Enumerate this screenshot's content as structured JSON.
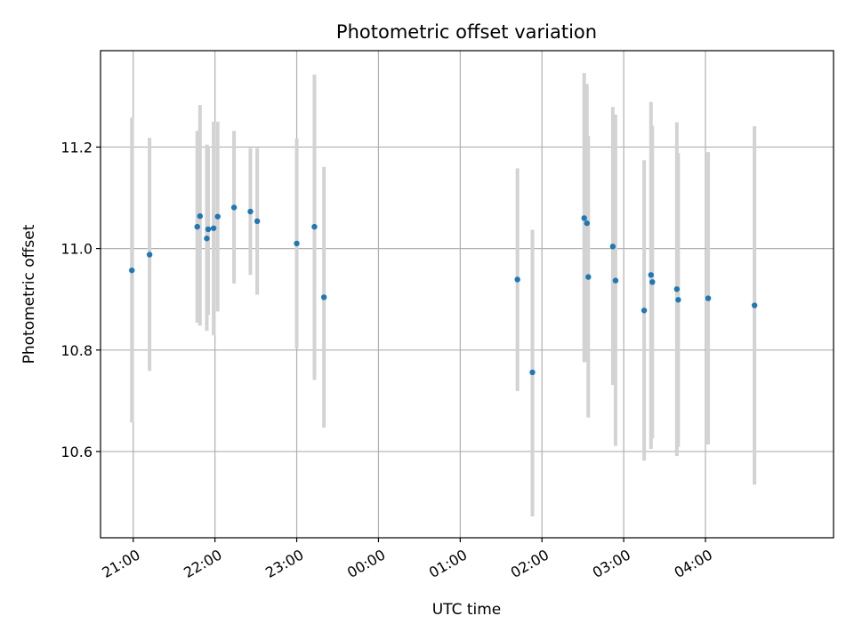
{
  "chart_data": {
    "type": "scatter",
    "title": "Photometric offset variation",
    "xlabel": "UTC time",
    "ylabel": "Photometric offset",
    "grid": true,
    "x_ticks": [
      "21:00",
      "22:00",
      "23:00",
      "00:00",
      "01:00",
      "02:00",
      "03:00",
      "04:00"
    ],
    "y_ticks": [
      "10.6",
      "10.8",
      "11.0",
      "11.2"
    ],
    "ylim": [
      10.43,
      11.39
    ],
    "xlim": [
      "20:36",
      "05:34"
    ],
    "colors": {
      "point": "#1f77b4",
      "errorbar": "#d3d3d3",
      "grid": "#b0b0b0"
    },
    "series": [
      {
        "points": [
          {
            "x": "20:59",
            "y": 10.957,
            "low": 10.657,
            "high": 11.258
          },
          {
            "x": "21:12",
            "y": 10.988,
            "low": 10.759,
            "high": 11.218
          },
          {
            "x": "21:47",
            "y": 11.043,
            "low": 10.854,
            "high": 11.232
          },
          {
            "x": "21:49",
            "y": 11.064,
            "low": 10.848,
            "high": 11.283
          },
          {
            "x": "21:54",
            "y": 11.02,
            "low": 10.838,
            "high": 11.205
          },
          {
            "x": "21:55",
            "y": 11.038,
            "low": 10.869,
            "high": 11.202
          },
          {
            "x": "21:59",
            "y": 11.04,
            "low": 10.829,
            "high": 11.25
          },
          {
            "x": "22:02",
            "y": 11.063,
            "low": 10.876,
            "high": 11.25
          },
          {
            "x": "22:14",
            "y": 11.081,
            "low": 10.931,
            "high": 11.232
          },
          {
            "x": "22:26",
            "y": 11.073,
            "low": 10.948,
            "high": 11.198
          },
          {
            "x": "22:31",
            "y": 11.054,
            "low": 10.909,
            "high": 11.198
          },
          {
            "x": "23:00",
            "y": 11.01,
            "low": 10.803,
            "high": 11.217
          },
          {
            "x": "23:13",
            "y": 11.043,
            "low": 10.741,
            "high": 11.343
          },
          {
            "x": "23:20",
            "y": 10.904,
            "low": 10.647,
            "high": 11.161
          },
          {
            "x": "01:42",
            "y": 10.939,
            "low": 10.719,
            "high": 11.158
          },
          {
            "x": "01:53",
            "y": 10.756,
            "low": 10.472,
            "high": 11.037
          },
          {
            "x": "02:31",
            "y": 11.06,
            "low": 10.776,
            "high": 11.346
          },
          {
            "x": "02:33",
            "y": 11.05,
            "low": 10.776,
            "high": 11.324
          },
          {
            "x": "02:34",
            "y": 10.944,
            "low": 10.667,
            "high": 11.222
          },
          {
            "x": "02:52",
            "y": 11.004,
            "low": 10.731,
            "high": 11.279
          },
          {
            "x": "02:54",
            "y": 10.937,
            "low": 10.611,
            "high": 11.264
          },
          {
            "x": "03:15",
            "y": 10.878,
            "low": 10.582,
            "high": 11.174
          },
          {
            "x": "03:20",
            "y": 10.948,
            "low": 10.605,
            "high": 11.289
          },
          {
            "x": "03:21",
            "y": 10.934,
            "low": 10.626,
            "high": 11.242
          },
          {
            "x": "03:39",
            "y": 10.92,
            "low": 10.591,
            "high": 11.249
          },
          {
            "x": "03:40",
            "y": 10.899,
            "low": 10.609,
            "high": 11.188
          },
          {
            "x": "04:02",
            "y": 10.902,
            "low": 10.614,
            "high": 11.19
          },
          {
            "x": "04:36",
            "y": 10.888,
            "low": 10.535,
            "high": 11.241
          }
        ]
      }
    ]
  }
}
